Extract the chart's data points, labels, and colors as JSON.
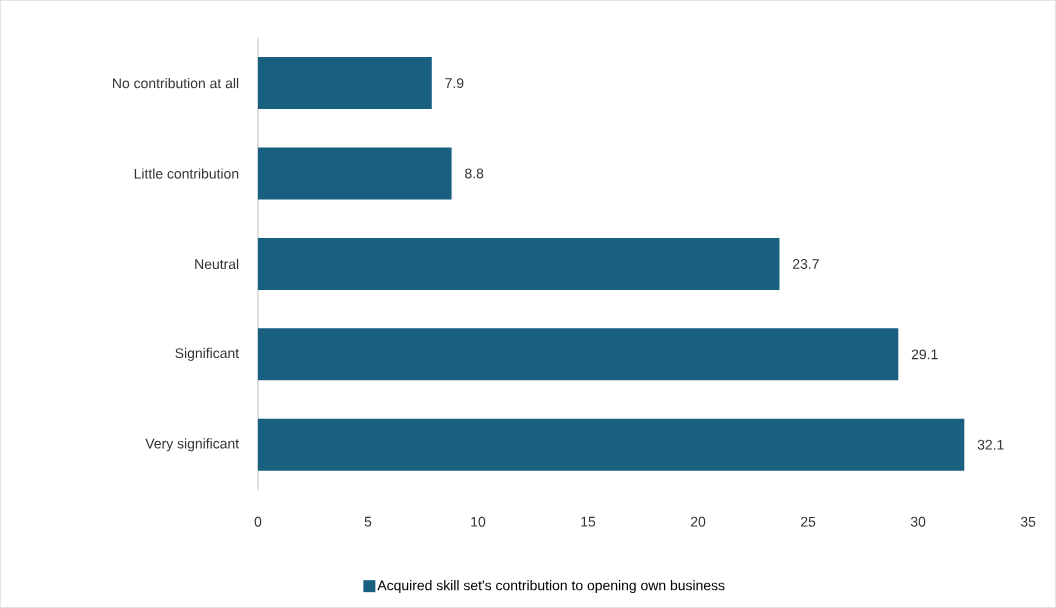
{
  "chart_data": {
    "type": "bar",
    "orientation": "horizontal",
    "categories": [
      "No contribution at all",
      "Little contribution",
      "Neutral",
      "Significant",
      "Very significant"
    ],
    "series": [
      {
        "name": "Acquired skill set's contribution to opening own business",
        "color": "#195f7f",
        "values": [
          7.9,
          8.8,
          23.7,
          29.1,
          32.1
        ]
      }
    ],
    "xlim": [
      0,
      35
    ],
    "xticks": [
      0,
      5,
      10,
      15,
      20,
      25,
      30,
      35
    ],
    "data_labels": true,
    "legend": "bottom",
    "grid": false
  }
}
